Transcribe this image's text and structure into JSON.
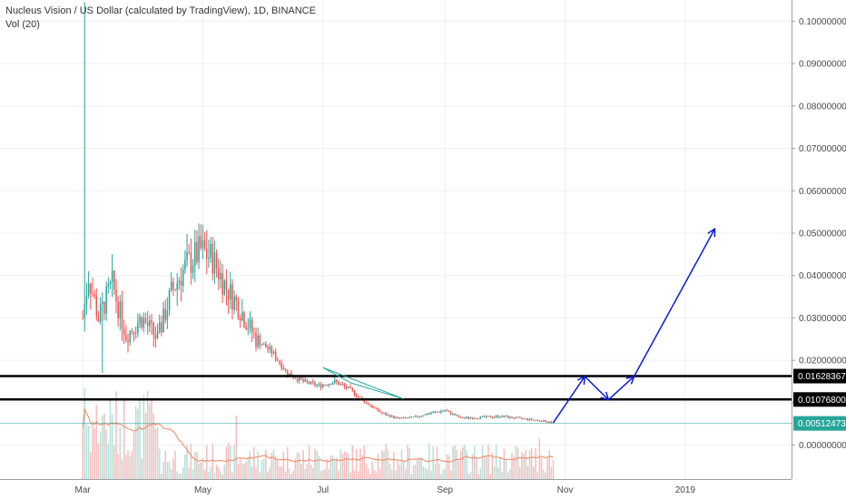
{
  "chart_data": {
    "type": "candlestick",
    "title": "Nucleus Vision / US Dollar (calculated by TradingView), 1D, BINANCE",
    "subtitle": "Vol (20)",
    "y_ticks": [
      "0.10000000",
      "0.09000000",
      "0.08000000",
      "0.07000000",
      "0.06000000",
      "0.05000000",
      "0.04000000",
      "0.03000000",
      "0.02000000",
      "0.01000000",
      "0.00000000"
    ],
    "y_tick_values": [
      0.1,
      0.09,
      0.08,
      0.07,
      0.06,
      0.05,
      0.04,
      0.03,
      0.02,
      0.01,
      0.0
    ],
    "ylim": [
      -0.008,
      0.105
    ],
    "x_ticks": [
      "Mar",
      "May",
      "Jul",
      "Sep",
      "Nov",
      "2019"
    ],
    "x_tick_days": [
      0,
      61,
      122,
      184,
      245,
      306
    ],
    "xlim_days": [
      -42,
      360
    ],
    "price_line": {
      "label": "0.00512473",
      "value": 0.00512473,
      "color": "#26a69a"
    },
    "horizontal_levels": [
      {
        "label": "0.01628367",
        "value": 0.01628367
      },
      {
        "label": "0.01076800",
        "value": 0.010768
      }
    ],
    "projection_arrow": {
      "color": "#0d1ad8",
      "points": [
        [
          239,
          0.0053
        ],
        [
          255,
          0.0162
        ],
        [
          267,
          0.0107
        ],
        [
          280,
          0.0162
        ],
        [
          321,
          0.051
        ]
      ]
    },
    "triangle_pattern": {
      "color": "#26a69a",
      "points": [
        [
          122,
          0.0183
        ],
        [
          136,
          0.0147
        ],
        [
          163,
          0.0109
        ],
        [
          122,
          0.0183
        ]
      ]
    },
    "grid": true,
    "up_color": "#26a69a",
    "down_color": "#ef5350",
    "volume_color_up": "#b6e0d9",
    "volume_color_down": "#f7bdbd",
    "volume_ma_color": "#f4845f"
  }
}
